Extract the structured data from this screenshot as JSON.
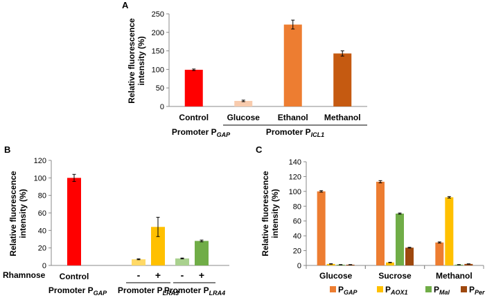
{
  "chart_data": [
    {
      "panel": "A",
      "type": "bar",
      "ylabel_lines": [
        "Relative fluorescence",
        "intensity (%)"
      ],
      "ylim": [
        0,
        250
      ],
      "yticks": [
        0,
        50,
        100,
        150,
        200,
        250
      ],
      "categories": [
        "Control",
        "Glucose",
        "Ethanol",
        "Methanol"
      ],
      "values": [
        99,
        15,
        221,
        143
      ],
      "errors": [
        2,
        2,
        12,
        7
      ],
      "colors": [
        "#ff0000",
        "#f8cbad",
        "#ed7d31",
        "#c55a11"
      ],
      "groups": [
        {
          "prefix": "Promoter P",
          "subscript": "GAP"
        },
        {
          "prefix": "Promoter P",
          "subscript": "ICL1"
        }
      ]
    },
    {
      "panel": "B",
      "type": "bar",
      "ylabel_lines": [
        "Relative fluorescence",
        "intensity (%)"
      ],
      "ylim": [
        0,
        120
      ],
      "yticks": [
        0,
        20,
        40,
        60,
        80,
        100,
        120
      ],
      "row_label": "Rhamnose",
      "bars": [
        {
          "value": 100,
          "error": 4,
          "color": "#ff0000"
        },
        {
          "value": 7,
          "error": 0.5,
          "color": "#ffd966",
          "sign": "-"
        },
        {
          "value": 44,
          "error": 11,
          "color": "#ffc000",
          "sign": "+"
        },
        {
          "value": 8,
          "error": 0.5,
          "color": "#a9d18e",
          "sign": "-"
        },
        {
          "value": 28,
          "error": 1,
          "color": "#70ad47",
          "sign": "+"
        }
      ],
      "control_label": "Control",
      "groups": [
        {
          "prefix": "Promoter P",
          "subscript": "GAP"
        },
        {
          "prefix": "Promoter P",
          "subscript": "LRA3"
        },
        {
          "prefix": "Promoter P",
          "subscript": "LRA4"
        }
      ]
    },
    {
      "panel": "C",
      "type": "bar",
      "ylabel_lines": [
        "Relative fluorescence",
        "intensity (%)"
      ],
      "ylim": [
        0,
        140
      ],
      "yticks": [
        0,
        20,
        40,
        60,
        80,
        100,
        120,
        140
      ],
      "categories": [
        "Glucose",
        "Sucrose",
        "Methanol"
      ],
      "series": [
        {
          "prefix": "P",
          "subscript": "GAP",
          "color": "#ed7d31",
          "values": [
            100,
            113,
            31
          ],
          "errors": [
            1,
            1.5,
            0.8
          ]
        },
        {
          "prefix": "P",
          "subscript": "AOX1",
          "color": "#ffc000",
          "values": [
            2,
            4,
            92
          ],
          "errors": [
            0.3,
            0.3,
            1
          ]
        },
        {
          "prefix": "P",
          "subscript": "Mal",
          "color": "#70ad47",
          "values": [
            1,
            70,
            1
          ],
          "errors": [
            0.2,
            0.8,
            0.2
          ]
        },
        {
          "prefix": "P",
          "subscript": "Per",
          "color": "#9e480e",
          "values": [
            1,
            24,
            2
          ],
          "errors": [
            0.2,
            0.5,
            0.2
          ]
        }
      ]
    }
  ]
}
